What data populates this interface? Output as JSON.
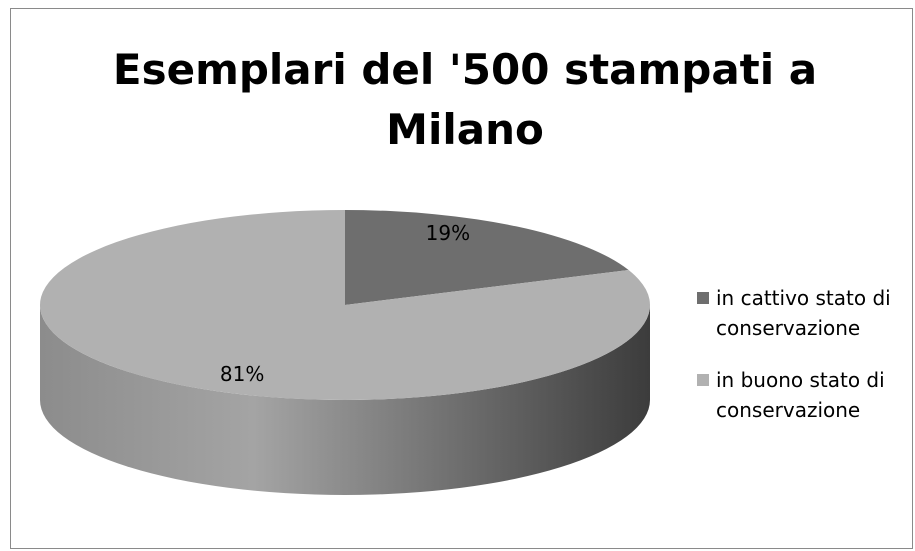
{
  "chart_data": {
    "type": "pie",
    "title": "Esemplari del '500 stampati a Milano",
    "categories": [
      "in cattivo stato di conservazione",
      "in buono stato di conservazione"
    ],
    "values": [
      19,
      81
    ],
    "value_labels": [
      "19%",
      "81%"
    ],
    "colors": [
      "#6e6e6e",
      "#b1b1b1"
    ],
    "legend": "right"
  }
}
